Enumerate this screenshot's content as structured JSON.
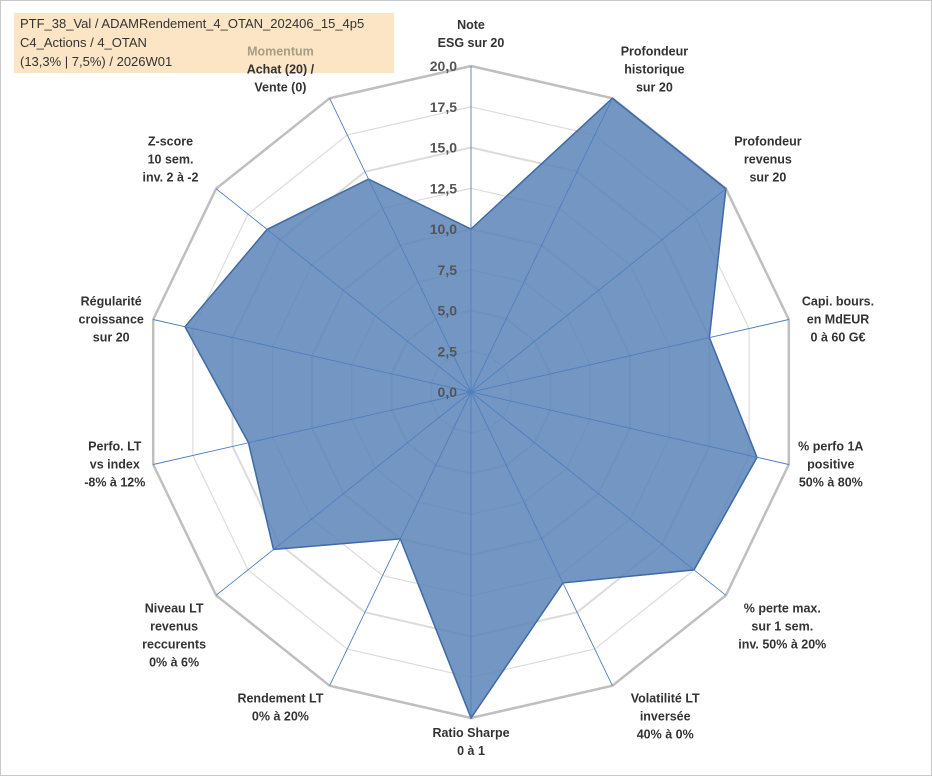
{
  "info": {
    "line1": "PTF_38_Val / ADAMRendement_4_OTAN_202406_15_4p5",
    "line2": "C4_Actions / 4_OTAN",
    "line3": "(13,3% | 7,5%) / 2026W01"
  },
  "colors": {
    "fill": "#5b84b8",
    "stroke": "#3e6aa6",
    "grid": "#c8c8c8",
    "spoke": "#4f7fc0",
    "momentum": "#a89c84",
    "info_bg": "#fbe5c4"
  },
  "chart_data": {
    "type": "radar",
    "rmax": 20,
    "ticks": [
      "0,0",
      "2,5",
      "5,0",
      "7,5",
      "10,0",
      "12,5",
      "15,0",
      "17,5",
      "20,0"
    ],
    "categories": [
      {
        "lines": [
          "Note",
          "ESG sur 20"
        ]
      },
      {
        "lines": [
          "Profondeur",
          "historique",
          "sur 20"
        ]
      },
      {
        "lines": [
          "Profondeur",
          "revenus",
          "sur 20"
        ]
      },
      {
        "lines": [
          "Capi. bours.",
          "en MdEUR",
          "0 à 60 G€"
        ]
      },
      {
        "lines": [
          "% perfo 1A",
          "positive",
          "50% à 80%"
        ]
      },
      {
        "lines": [
          "% perte max.",
          "sur 1 sem.",
          "inv. 50% à 20%"
        ]
      },
      {
        "lines": [
          "Volatilité LT",
          "inversée",
          "40% à 0%"
        ]
      },
      {
        "lines": [
          "Ratio Sharpe",
          "0 à 1"
        ]
      },
      {
        "lines": [
          "Rendement LT",
          "0% à 20%"
        ]
      },
      {
        "lines": [
          "Niveau LT",
          "revenus",
          "reccurents",
          "0% à 6%"
        ]
      },
      {
        "lines": [
          "Perfo. LT",
          "vs index",
          "-8% à 12%"
        ]
      },
      {
        "lines": [
          "Régularité",
          "croissance",
          "sur 20"
        ]
      },
      {
        "lines": [
          "Z-score",
          "10 sem.",
          "inv. 2 à -2"
        ]
      },
      {
        "lines": [
          "Momentum",
          "Achat (20) /",
          "Vente (0)"
        ],
        "highlight": 0
      }
    ],
    "values": [
      10,
      20,
      20,
      15,
      18,
      17.5,
      13,
      20,
      10,
      15.5,
      14,
      18,
      16,
      14.5
    ]
  }
}
